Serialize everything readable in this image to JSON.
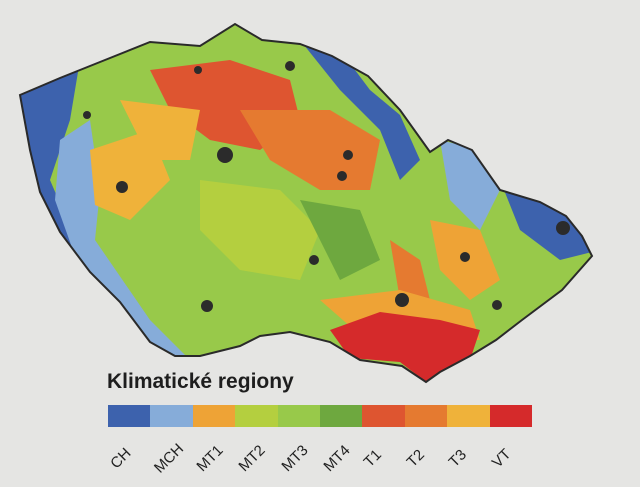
{
  "legend": {
    "title": "Klimatické regiony",
    "items": [
      {
        "label": "CH",
        "color": "#3d62ad"
      },
      {
        "label": "MCH",
        "color": "#86acd9"
      },
      {
        "label": "MT1",
        "color": "#eea336"
      },
      {
        "label": "MT2",
        "color": "#b4cf3f"
      },
      {
        "label": "MT3",
        "color": "#98c94a"
      },
      {
        "label": "MT4",
        "color": "#6ea83f"
      },
      {
        "label": "T1",
        "color": "#de5530"
      },
      {
        "label": "T2",
        "color": "#e57a30"
      },
      {
        "label": "T3",
        "color": "#efb23a"
      },
      {
        "label": "VT",
        "color": "#d52a2b"
      }
    ]
  },
  "map": {
    "border_color": "#2a2a2a",
    "city_color": "#2b2b2b"
  }
}
